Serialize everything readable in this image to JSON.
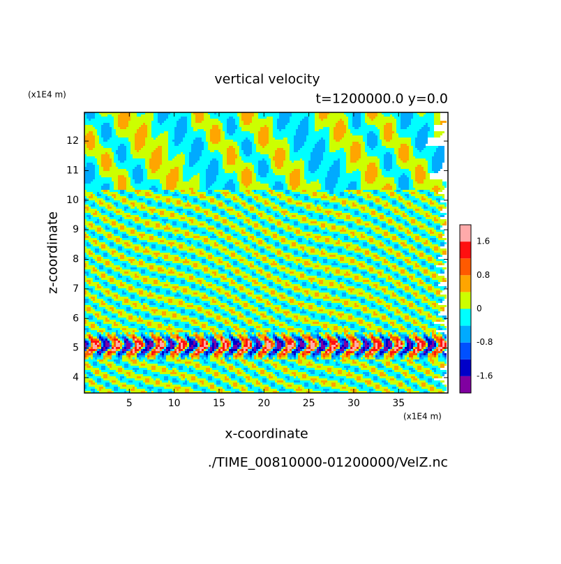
{
  "chart_data": {
    "type": "contour",
    "title": "vertical velocity",
    "subtitle": "t=1200000.0 y=0.0",
    "x_label": "x-coordinate",
    "y_label": "z-coordinate",
    "x_unit": "(x1E4 m)",
    "y_unit": "(x1E4 m)",
    "source": "./TIME_00810000-01200000/VelZ.nc",
    "xlim": [
      0,
      40.5
    ],
    "xticks": [
      5,
      10,
      15,
      20,
      25,
      30,
      35
    ],
    "ylim": [
      3.48,
      12.97
    ],
    "yticks": [
      4,
      5,
      6,
      7,
      8,
      9,
      10,
      11,
      12
    ],
    "colorbar": {
      "bounds": [
        -2.0,
        -1.6,
        -1.2,
        -0.8,
        -0.4,
        0,
        0.4,
        0.8,
        1.2,
        1.6,
        2.0
      ],
      "colors": [
        "#8000a0",
        "#0000c8",
        "#0050ff",
        "#00aaff",
        "#00ffff",
        "#ccff00",
        "#ffa500",
        "#ff5a00",
        "#ff1010",
        "#ffaaaa"
      ],
      "ticks": [
        -1.6,
        -0.8,
        0,
        0.8,
        1.6
      ]
    }
  }
}
